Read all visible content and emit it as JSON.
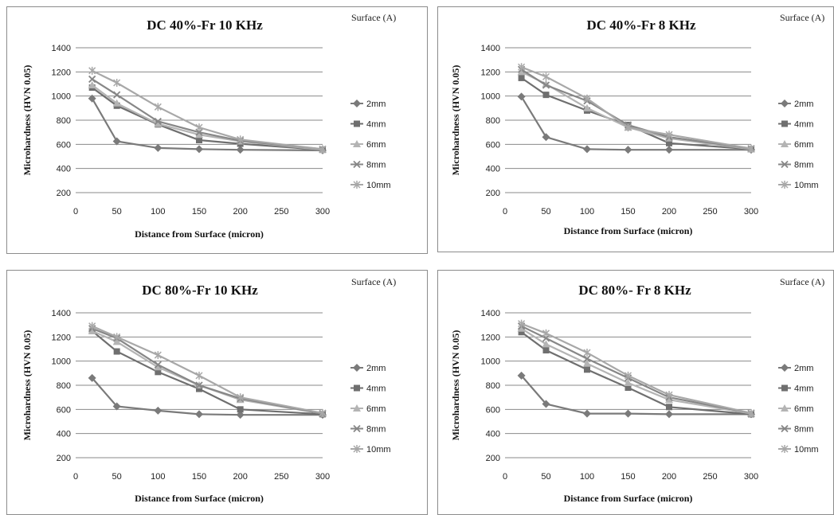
{
  "surface_note": "Surface (A)",
  "series_colors": [
    "#7a7a7a",
    "#6f6f6f",
    "#b4b4b4",
    "#878787",
    "#a8a8a8"
  ],
  "series_markers": [
    "diamond",
    "square",
    "triangle",
    "x",
    "star"
  ],
  "chart_data": [
    {
      "type": "line",
      "title": "DC 40%-Fr 10 KHz",
      "xlabel": "Distance from Surface (micron)",
      "ylabel": "Microhardness (HVN 0.05)",
      "xlim": [
        0,
        300
      ],
      "ylim": [
        200,
        1400
      ],
      "xticks": [
        "0",
        "50",
        "100",
        "150",
        "200",
        "250",
        "300"
      ],
      "yticks": [
        "200",
        "400",
        "600",
        "800",
        "1000",
        "1200",
        "1400"
      ],
      "grid": true,
      "legend": "right",
      "x": [
        20,
        50,
        100,
        150,
        200,
        300
      ],
      "series": [
        {
          "name": "2mm",
          "values": [
            980,
            625,
            570,
            560,
            555,
            550
          ]
        },
        {
          "name": "4mm",
          "values": [
            1070,
            920,
            765,
            635,
            605,
            555
          ]
        },
        {
          "name": "6mm",
          "values": [
            1090,
            940,
            770,
            680,
            625,
            555
          ]
        },
        {
          "name": "8mm",
          "values": [
            1140,
            1010,
            790,
            700,
            630,
            560
          ]
        },
        {
          "name": "10mm",
          "values": [
            1210,
            1110,
            910,
            740,
            640,
            560
          ]
        }
      ]
    },
    {
      "type": "line",
      "title": "DC 40%-Fr 8 KHz",
      "xlabel": "Distance from Surface (micron)",
      "ylabel": "Microhardness (HVN 0.05)",
      "xlim": [
        0,
        300
      ],
      "ylim": [
        200,
        1400
      ],
      "xticks": [
        "0",
        "50",
        "100",
        "150",
        "200",
        "250",
        "300"
      ],
      "yticks": [
        "200",
        "400",
        "600",
        "800",
        "1000",
        "1200",
        "1400"
      ],
      "grid": true,
      "legend": "right",
      "x": [
        20,
        50,
        100,
        150,
        200,
        300
      ],
      "series": [
        {
          "name": "2mm",
          "values": [
            995,
            660,
            560,
            555,
            555,
            555
          ]
        },
        {
          "name": "4mm",
          "values": [
            1150,
            1010,
            880,
            760,
            610,
            560
          ]
        },
        {
          "name": "6mm",
          "values": [
            1200,
            1100,
            900,
            740,
            650,
            560
          ]
        },
        {
          "name": "8mm",
          "values": [
            1220,
            1090,
            960,
            760,
            660,
            565
          ]
        },
        {
          "name": "10mm",
          "values": [
            1240,
            1160,
            980,
            740,
            680,
            565
          ]
        }
      ]
    },
    {
      "type": "line",
      "title": "DC 80%-Fr 10 KHz",
      "xlabel": "Distance from Surface (micron)",
      "ylabel": "Microhardness (HVN 0.05)",
      "xlim": [
        0,
        300
      ],
      "ylim": [
        200,
        1400
      ],
      "xticks": [
        "0",
        "50",
        "100",
        "150",
        "200",
        "250",
        "300"
      ],
      "yticks": [
        "200",
        "400",
        "600",
        "800",
        "1000",
        "1200",
        "1400"
      ],
      "grid": true,
      "legend": "right",
      "x": [
        20,
        50,
        100,
        150,
        200,
        300
      ],
      "series": [
        {
          "name": "2mm",
          "values": [
            860,
            625,
            590,
            560,
            555,
            555
          ]
        },
        {
          "name": "4mm",
          "values": [
            1250,
            1080,
            910,
            770,
            600,
            560
          ]
        },
        {
          "name": "6mm",
          "values": [
            1250,
            1160,
            950,
            800,
            680,
            565
          ]
        },
        {
          "name": "8mm",
          "values": [
            1270,
            1190,
            970,
            800,
            690,
            565
          ]
        },
        {
          "name": "10mm",
          "values": [
            1290,
            1200,
            1050,
            880,
            700,
            570
          ]
        }
      ]
    },
    {
      "type": "line",
      "title": "DC 80%- Fr 8 KHz",
      "xlabel": "Distance from Surface (micron)",
      "ylabel": "Microhardness (HVN 0.05)",
      "xlim": [
        0,
        300
      ],
      "ylim": [
        200,
        1400
      ],
      "xticks": [
        "0",
        "50",
        "100",
        "150",
        "200",
        "250",
        "300"
      ],
      "yticks": [
        "200",
        "400",
        "600",
        "800",
        "1000",
        "1200",
        "1400"
      ],
      "grid": true,
      "legend": "right",
      "x": [
        20,
        50,
        100,
        150,
        200,
        300
      ],
      "series": [
        {
          "name": "2mm",
          "values": [
            880,
            645,
            565,
            565,
            560,
            560
          ]
        },
        {
          "name": "4mm",
          "values": [
            1240,
            1090,
            930,
            780,
            620,
            560
          ]
        },
        {
          "name": "6mm",
          "values": [
            1270,
            1140,
            980,
            820,
            680,
            565
          ]
        },
        {
          "name": "8mm",
          "values": [
            1290,
            1190,
            1020,
            860,
            700,
            570
          ]
        },
        {
          "name": "10mm",
          "values": [
            1310,
            1230,
            1070,
            880,
            720,
            570
          ]
        }
      ]
    }
  ]
}
